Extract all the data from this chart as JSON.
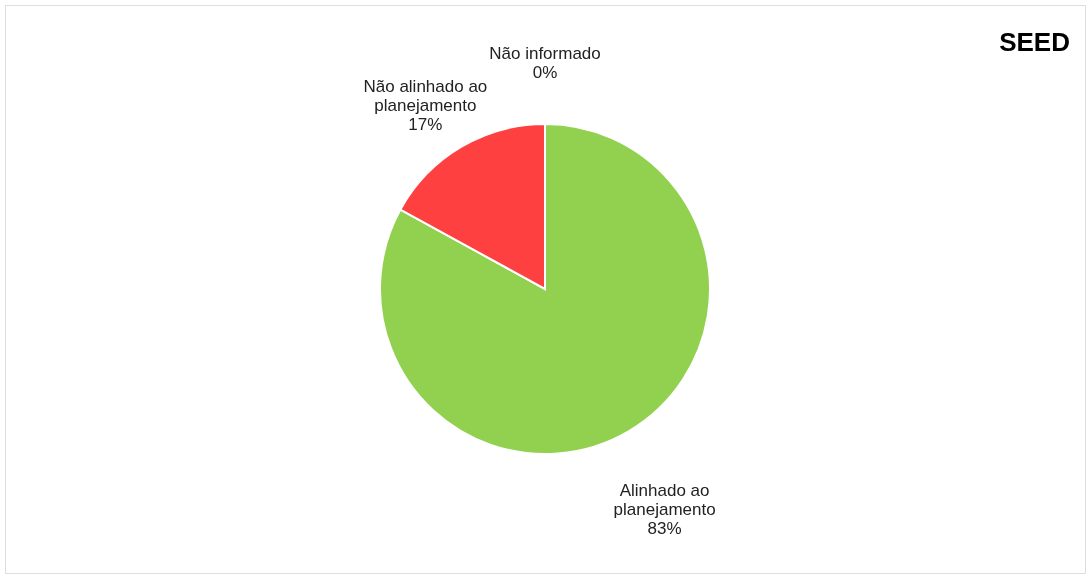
{
  "chart_data": {
    "type": "pie",
    "categories": [
      "Alinhado ao planejamento",
      "Não alinhado ao planejamento",
      "Não informado"
    ],
    "values": [
      83,
      17,
      0
    ],
    "value_labels": [
      "83%",
      "17%",
      "0%"
    ],
    "colors": [
      "#92d050",
      "#ff4040",
      "#4f81bd"
    ],
    "annotations": [
      "SEED"
    ]
  }
}
